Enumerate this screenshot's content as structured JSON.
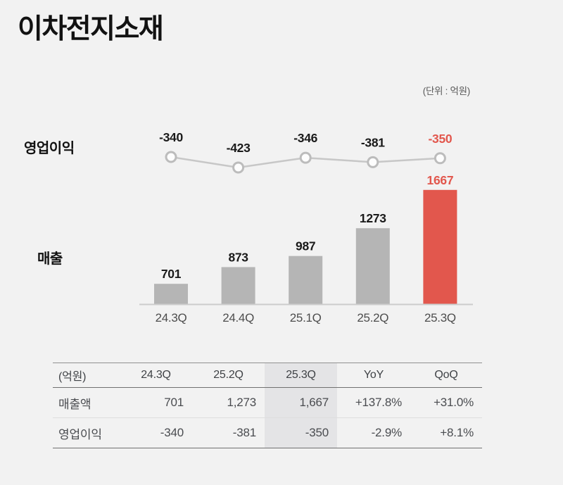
{
  "header": {
    "title": "이차전지소재",
    "unit_label": "(단위 : 억원)"
  },
  "colors": {
    "accent": "#e2574d",
    "bar_gray": "#b5b5b5",
    "line_gray": "#c7c7c7",
    "marker_fill": "#fdfdfd",
    "marker_stroke": "#bcbcbc",
    "axis_line": "#cccccc",
    "value_label_dark": "#1a1a1a",
    "axis_label": "#4d4d4d",
    "highlight_bg": "#e4e4e6",
    "background": "#f2f2f2"
  },
  "chart_data": {
    "type": "combo",
    "categories": [
      "24.3Q",
      "24.4Q",
      "25.1Q",
      "25.2Q",
      "25.3Q"
    ],
    "series": [
      {
        "name": "영업이익",
        "type": "line",
        "values": [
          -340,
          -423,
          -346,
          -381,
          -350
        ]
      },
      {
        "name": "매출",
        "type": "bar",
        "values": [
          701,
          873,
          987,
          1273,
          1667
        ]
      }
    ],
    "highlight_index": 4,
    "value_labels": true,
    "grid": false,
    "legend_position": "left-row-labels",
    "xlabel": "",
    "ylabel": "",
    "unit": "억원"
  },
  "table": {
    "headers": [
      "(억원)",
      "24.3Q",
      "25.2Q",
      "25.3Q",
      "YoY",
      "QoQ"
    ],
    "highlight_column": 3,
    "rows": [
      {
        "label": "매출액",
        "values": [
          "701",
          "1,273",
          "1,667",
          "+137.8%",
          "+31.0%"
        ]
      },
      {
        "label": "영업이익",
        "values": [
          "-340",
          "-381",
          "-350",
          "-2.9%",
          "+8.1%"
        ]
      }
    ]
  }
}
